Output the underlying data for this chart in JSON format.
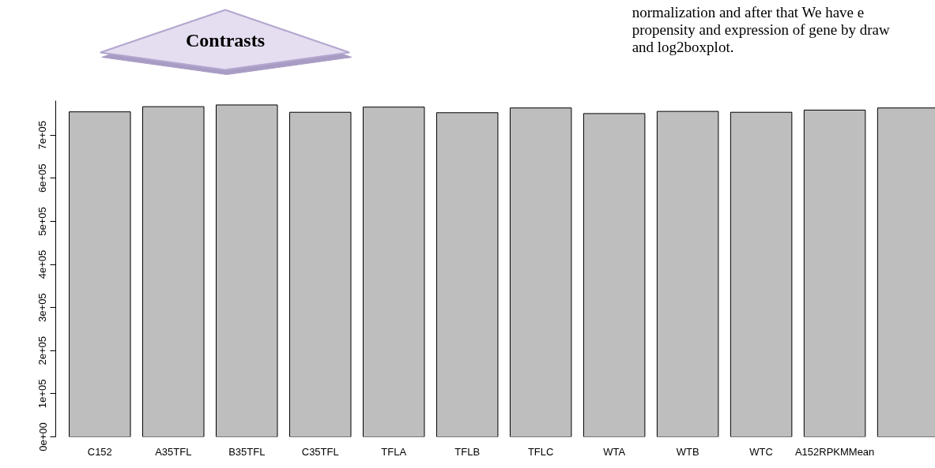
{
  "chart_data": {
    "type": "bar",
    "categories": [
      "C152",
      "A35TFL",
      "B35TFL",
      "C35TFL",
      "TFLA",
      "TFLB",
      "TFLC",
      "WTA",
      "WTB",
      "WTC",
      "A152RPKMMean",
      null
    ],
    "values": [
      754000,
      766000,
      770000,
      753000,
      765000,
      752000,
      763000,
      750000,
      755000,
      753000,
      758000,
      763000
    ],
    "color": "#bebebe",
    "ylim": [
      0,
      780000
    ],
    "yticks": [
      {
        "value": 0,
        "label": "0e+00"
      },
      {
        "value": 100000,
        "label": "1e+05"
      },
      {
        "value": 200000,
        "label": "2e+05"
      },
      {
        "value": 300000,
        "label": "3e+05"
      },
      {
        "value": 400000,
        "label": "4e+05"
      },
      {
        "value": 500000,
        "label": "5e+05"
      },
      {
        "value": 600000,
        "label": "6e+05"
      },
      {
        "value": 700000,
        "label": "7e+05"
      }
    ],
    "grid": false,
    "annotations": [
      "Contrasts",
      "normalization and after that We have e",
      "propensity and expression of gene by draw",
      "and log2boxplot."
    ]
  }
}
